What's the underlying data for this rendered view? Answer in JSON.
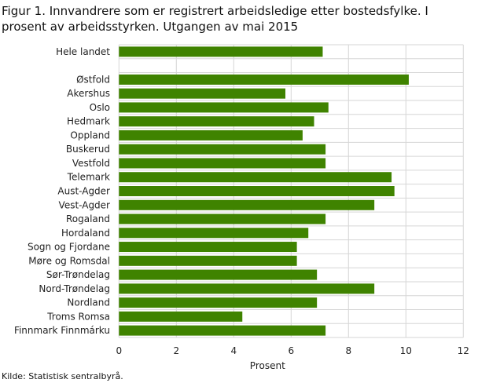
{
  "chart_data": {
    "type": "bar",
    "orientation": "horizontal",
    "title": "Figur 1. Innvandrere som er registrert arbeidsledige etter bostedsfylke. I prosent av arbeidsstyrken. Utgangen av mai 2015",
    "xlabel": "Prosent",
    "ylabel": "",
    "xlim": [
      0,
      12
    ],
    "xticks": [
      0,
      2,
      4,
      6,
      8,
      10,
      12
    ],
    "grid": true,
    "categories": [
      "Hele landet",
      "Østfold",
      "Akershus",
      "Oslo",
      "Hedmark",
      "Oppland",
      "Buskerud",
      "Vestfold",
      "Telemark",
      "Aust-Agder",
      "Vest-Agder",
      "Rogaland",
      "Hordaland",
      "Sogn og Fjordane",
      "Møre og Romsdal",
      "Sør-Trøndelag",
      "Nord-Trøndelag",
      "Nordland",
      "Troms Romsa",
      "Finnmark Finnmárku"
    ],
    "values": [
      7.1,
      10.1,
      5.8,
      7.3,
      6.8,
      6.4,
      7.2,
      7.2,
      9.5,
      9.6,
      8.9,
      7.2,
      6.6,
      6.2,
      6.2,
      6.9,
      8.9,
      6.9,
      4.3,
      7.2
    ],
    "bar_color": "#3f8300",
    "source": "Kilde: Statistisk sentralbyrå."
  }
}
